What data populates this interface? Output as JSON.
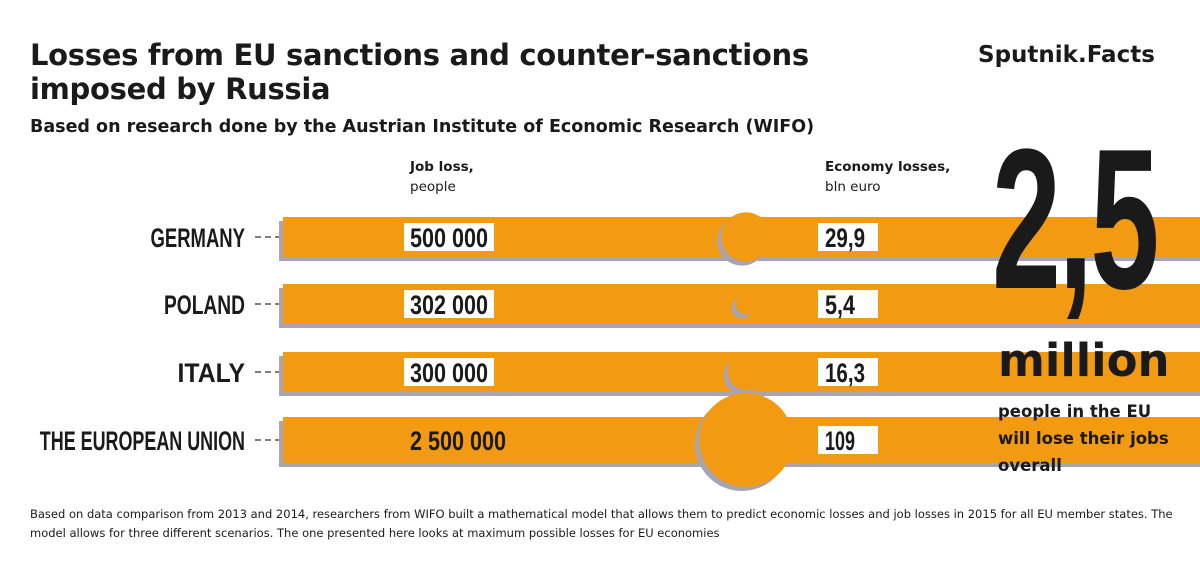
{
  "header": {
    "title": "Losses from EU sanctions and counter-sanctions imposed by Russia",
    "brand": "Sputnik.Facts",
    "subtitle": "Based on research done by the Austrian Institute of Economic Research (WIFO)"
  },
  "columns": {
    "jobs_title": "Job loss,",
    "jobs_unit": "people",
    "economy_title": "Economy losses,",
    "economy_unit": "bln euro"
  },
  "highlight": {
    "number": "2,5",
    "unit": "million",
    "text": "people in the EU will lose their jobs overall"
  },
  "footer": "Based on data comparison from 2013 and 2014, researchers from WIFO built a mathematical model that allows them to predict economic losses and job losses in 2015 for all EU member states. The model allows for three different scenarios. The one presented here looks at maximum possible losses for EU economies",
  "colors": {
    "accent": "#f29a12",
    "shadow": "#a8a4b0",
    "text": "#1a1a1a"
  },
  "chart_data": {
    "type": "bar",
    "categories": [
      "GERMANY",
      "POLAND",
      "ITALY",
      "THE EUROPEAN UNION"
    ],
    "series": [
      {
        "name": "Job loss, people",
        "values": [
          500000,
          302000,
          300000,
          2500000
        ],
        "labels": [
          "500 000",
          "302 000",
          "300 000",
          "2 500 000"
        ]
      },
      {
        "name": "Economy losses, bln euro",
        "values": [
          29.9,
          5.4,
          16.3,
          109
        ],
        "labels": [
          "29,9",
          "5,4",
          "16,3",
          "109"
        ]
      }
    ]
  }
}
